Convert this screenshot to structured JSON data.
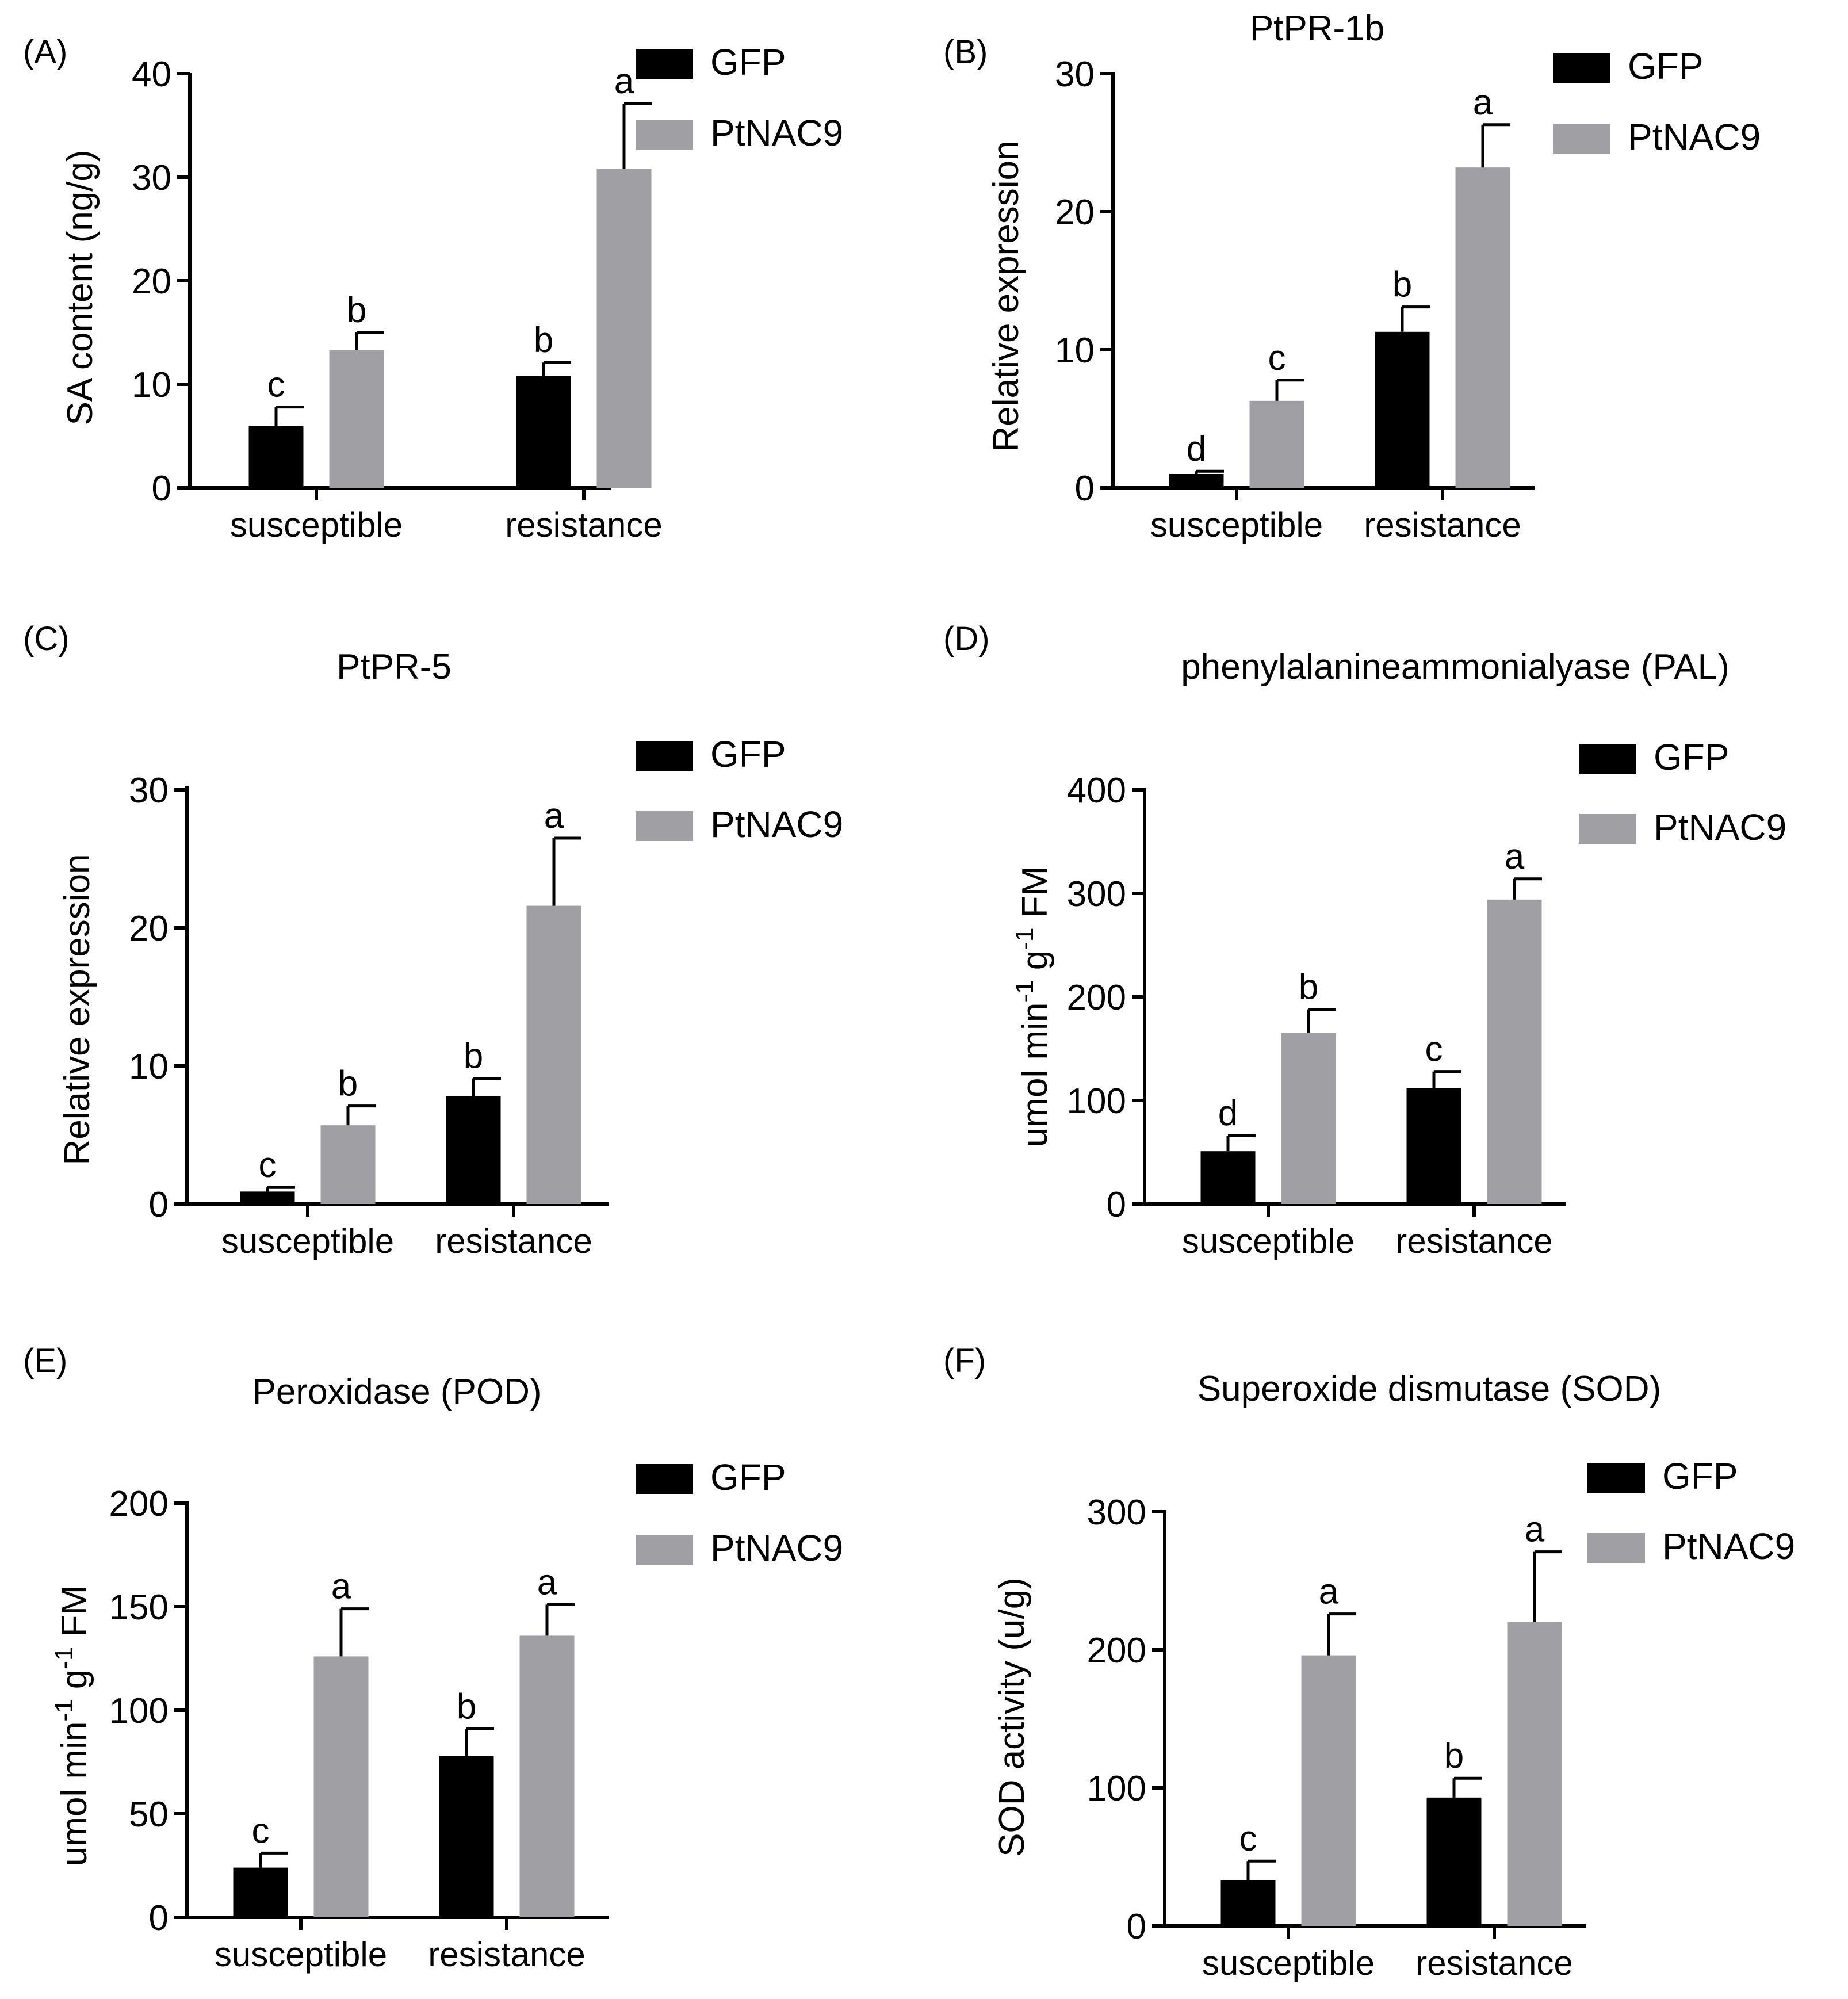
{
  "colors": {
    "GFP": "#000000",
    "PtNAC9": "#a0a0a4",
    "axis": "#000000"
  },
  "chart_data": [
    {
      "panel": "(A)",
      "type": "bar",
      "title": "",
      "ylabel": "SA content (ng/g)",
      "xlabel": "",
      "categories": [
        "susceptible",
        "resistance"
      ],
      "ylim": [
        0,
        40
      ],
      "yticks": [
        0,
        10,
        20,
        30,
        40
      ],
      "legend": "top-right",
      "series": [
        {
          "name": "GFP",
          "values": [
            6,
            10.8
          ],
          "errors": [
            1.8,
            1.3
          ],
          "letters": [
            "c",
            "b"
          ]
        },
        {
          "name": "PtNAC9",
          "values": [
            13.3,
            30.8
          ],
          "errors": [
            1.7,
            6.3
          ],
          "letters": [
            "b",
            "a"
          ]
        }
      ]
    },
    {
      "panel": "(B)",
      "type": "bar",
      "title": "PtPR-1b",
      "ylabel": "Relative expression",
      "xlabel": "",
      "categories": [
        "susceptible",
        "resistance"
      ],
      "ylim": [
        0,
        30
      ],
      "yticks": [
        0,
        10,
        20,
        30
      ],
      "legend": "top-right",
      "series": [
        {
          "name": "GFP",
          "values": [
            1.0,
            11.3
          ],
          "errors": [
            0.2,
            1.8
          ],
          "letters": [
            "d",
            "b"
          ]
        },
        {
          "name": "PtNAC9",
          "values": [
            6.3,
            23.2
          ],
          "errors": [
            1.5,
            3.1
          ],
          "letters": [
            "c",
            "a"
          ]
        }
      ]
    },
    {
      "panel": "(C)",
      "type": "bar",
      "title": "PtPR-5",
      "ylabel": "Relative expression",
      "xlabel": "",
      "categories": [
        "susceptible",
        "resistance"
      ],
      "ylim": [
        0,
        30
      ],
      "yticks": [
        0,
        10,
        20,
        30
      ],
      "legend": "top-right",
      "series": [
        {
          "name": "GFP",
          "values": [
            0.9,
            7.8
          ],
          "errors": [
            0.3,
            1.3
          ],
          "letters": [
            "c",
            "b"
          ]
        },
        {
          "name": "PtNAC9",
          "values": [
            5.7,
            21.6
          ],
          "errors": [
            1.4,
            4.9
          ],
          "letters": [
            "b",
            "a"
          ]
        }
      ]
    },
    {
      "panel": "(D)",
      "type": "bar",
      "title": "phenylalanineammonialyase (PAL)",
      "ylabel": "umol min",
      "ylabel_sup1": "-1",
      "ylabel_mid": " g",
      "ylabel_sup2": "-1",
      "ylabel_end": " FM",
      "xlabel": "",
      "categories": [
        "susceptible",
        "resistance"
      ],
      "ylim": [
        0,
        400
      ],
      "yticks": [
        0,
        100,
        200,
        300,
        400
      ],
      "legend": "top-right",
      "series": [
        {
          "name": "GFP",
          "values": [
            51,
            112
          ],
          "errors": [
            15,
            16
          ],
          "letters": [
            "d",
            "c"
          ]
        },
        {
          "name": "PtNAC9",
          "values": [
            165,
            294
          ],
          "errors": [
            23,
            20
          ],
          "letters": [
            "b",
            "a"
          ]
        }
      ]
    },
    {
      "panel": "(E)",
      "type": "bar",
      "title": "Peroxidase (POD)",
      "ylabel": "umol min",
      "ylabel_sup1": "-1",
      "ylabel_mid": " g",
      "ylabel_sup2": "-1",
      "ylabel_end": " FM",
      "xlabel": "",
      "categories": [
        "susceptible",
        "resistance"
      ],
      "ylim": [
        0,
        200
      ],
      "yticks": [
        0,
        50,
        100,
        150,
        200
      ],
      "legend": "top-right",
      "series": [
        {
          "name": "GFP",
          "values": [
            24,
            78
          ],
          "errors": [
            7,
            13
          ],
          "letters": [
            "c",
            "b"
          ]
        },
        {
          "name": "PtNAC9",
          "values": [
            126,
            136
          ],
          "errors": [
            23,
            15
          ],
          "letters": [
            "a",
            "a"
          ]
        }
      ]
    },
    {
      "panel": "(F)",
      "type": "bar",
      "title": "Superoxide dismutase (SOD)",
      "ylabel": "SOD activity (u/g)",
      "xlabel": "",
      "categories": [
        "susceptible",
        "resistance"
      ],
      "ylim": [
        0,
        300
      ],
      "yticks": [
        0,
        100,
        200,
        300
      ],
      "legend": "top-right",
      "series": [
        {
          "name": "GFP",
          "values": [
            33,
            93
          ],
          "errors": [
            14,
            14
          ],
          "letters": [
            "c",
            "b"
          ]
        },
        {
          "name": "PtNAC9",
          "values": [
            196,
            220
          ],
          "errors": [
            30,
            51
          ],
          "letters": [
            "a",
            "a"
          ]
        }
      ]
    }
  ]
}
